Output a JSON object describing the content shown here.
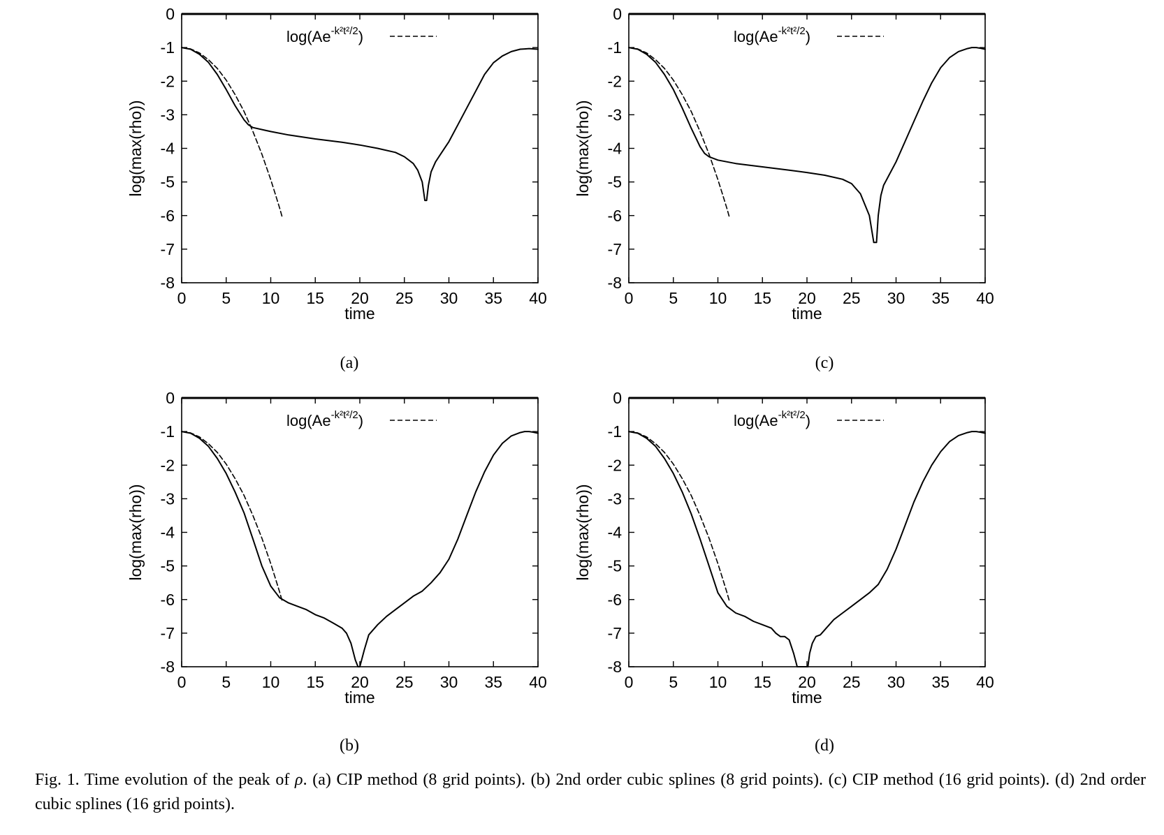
{
  "chart_data": [
    {
      "id": "a",
      "type": "line",
      "panel_label": "(a)",
      "xlabel": "time",
      "ylabel": "log(max(rho))",
      "xlim": [
        0,
        40
      ],
      "ylim": [
        -8,
        0
      ],
      "xticks": [
        "0",
        "5",
        "10",
        "15",
        "20",
        "25",
        "30",
        "35",
        "40"
      ],
      "yticks": [
        "0",
        "-1",
        "-2",
        "-3",
        "-4",
        "-5",
        "-6",
        "-7",
        "-8"
      ],
      "legend": {
        "prefix": "log(Ae",
        "sup": "-k²t²/2",
        "suffix": ")"
      },
      "series": [
        {
          "name": "log(max(rho))",
          "style": "solid",
          "x": [
            0,
            1,
            2,
            3,
            4,
            5,
            6,
            7,
            7.5,
            8,
            10,
            12,
            15,
            18,
            20,
            22,
            24,
            25,
            26,
            26.5,
            27,
            27.3,
            27.5,
            27.7,
            28,
            28.5,
            29,
            30,
            31,
            32,
            33,
            34,
            35,
            36,
            37,
            38,
            38.5,
            39,
            39.5,
            40
          ],
          "y": [
            -1,
            -1.05,
            -1.2,
            -1.44,
            -1.8,
            -2.25,
            -2.73,
            -3.15,
            -3.3,
            -3.38,
            -3.5,
            -3.6,
            -3.72,
            -3.82,
            -3.9,
            -4.0,
            -4.12,
            -4.25,
            -4.45,
            -4.65,
            -5.0,
            -5.55,
            -5.55,
            -5.1,
            -4.7,
            -4.4,
            -4.2,
            -3.8,
            -3.3,
            -2.8,
            -2.3,
            -1.8,
            -1.45,
            -1.25,
            -1.12,
            -1.05,
            -1.04,
            -1.03,
            -1.04,
            -1.05
          ]
        },
        {
          "name": "log(Ae^(-k²t²/2))",
          "style": "dashed",
          "x": [
            0,
            1,
            2,
            3,
            4,
            5,
            6,
            7,
            8,
            9,
            10,
            10.5,
            11,
            11.3
          ],
          "y": [
            -1,
            -1.04,
            -1.16,
            -1.36,
            -1.62,
            -1.97,
            -2.4,
            -2.9,
            -3.5,
            -4.17,
            -4.93,
            -5.35,
            -5.78,
            -6.06
          ]
        }
      ]
    },
    {
      "id": "c",
      "type": "line",
      "panel_label": "(c)",
      "xlabel": "time",
      "ylabel": "log(max(rho))",
      "xlim": [
        0,
        40
      ],
      "ylim": [
        -8,
        0
      ],
      "xticks": [
        "0",
        "5",
        "10",
        "15",
        "20",
        "25",
        "30",
        "35",
        "40"
      ],
      "yticks": [
        "0",
        "-1",
        "-2",
        "-3",
        "-4",
        "-5",
        "-6",
        "-7",
        "-8"
      ],
      "legend": {
        "prefix": "log(Ae",
        "sup": "-k²t²/2",
        "suffix": ")"
      },
      "series": [
        {
          "name": "log(max(rho))",
          "style": "solid",
          "x": [
            0,
            1,
            2,
            3,
            4,
            5,
            6,
            7,
            8,
            8.5,
            9,
            10,
            12,
            15,
            18,
            20,
            22,
            24,
            25,
            26,
            27,
            27.5,
            27.8,
            28,
            28.3,
            28.6,
            29,
            30,
            31,
            32,
            33,
            34,
            35,
            36,
            37,
            38,
            38.5,
            39,
            39.5,
            40
          ],
          "y": [
            -1,
            -1.05,
            -1.2,
            -1.44,
            -1.8,
            -2.25,
            -2.8,
            -3.4,
            -3.95,
            -4.15,
            -4.25,
            -4.35,
            -4.45,
            -4.55,
            -4.65,
            -4.72,
            -4.8,
            -4.92,
            -5.05,
            -5.35,
            -6.0,
            -6.8,
            -6.8,
            -6.0,
            -5.4,
            -5.1,
            -4.9,
            -4.4,
            -3.8,
            -3.2,
            -2.6,
            -2.05,
            -1.6,
            -1.3,
            -1.12,
            -1.03,
            -1.0,
            -1.0,
            -1.02,
            -1.05
          ]
        },
        {
          "name": "log(Ae^(-k²t²/2))",
          "style": "dashed",
          "x": [
            0,
            1,
            2,
            3,
            4,
            5,
            6,
            7,
            8,
            9,
            10,
            10.5,
            11,
            11.3
          ],
          "y": [
            -1,
            -1.04,
            -1.16,
            -1.36,
            -1.62,
            -1.97,
            -2.4,
            -2.9,
            -3.5,
            -4.17,
            -4.93,
            -5.35,
            -5.78,
            -6.06
          ]
        }
      ]
    },
    {
      "id": "b",
      "type": "line",
      "panel_label": "(b)",
      "xlabel": "time",
      "ylabel": "log(max(rho))",
      "xlim": [
        0,
        40
      ],
      "ylim": [
        -8,
        0
      ],
      "xticks": [
        "0",
        "5",
        "10",
        "15",
        "20",
        "25",
        "30",
        "35",
        "40"
      ],
      "yticks": [
        "0",
        "-1",
        "-2",
        "-3",
        "-4",
        "-5",
        "-6",
        "-7",
        "-8"
      ],
      "legend": {
        "prefix": "log(Ae",
        "sup": "-k²t²/2",
        "suffix": ")"
      },
      "series": [
        {
          "name": "log(max(rho))",
          "style": "solid",
          "x": [
            0,
            1,
            2,
            3,
            4,
            5,
            6,
            7,
            8,
            9,
            10,
            11,
            12,
            13,
            14,
            15,
            16,
            17,
            18,
            18.5,
            19,
            19.5,
            19.8,
            20,
            20.5,
            21,
            22,
            23,
            24,
            25,
            26,
            27,
            28,
            29,
            30,
            31,
            32,
            33,
            34,
            35,
            36,
            37,
            38,
            38.5,
            39,
            39.5,
            40
          ],
          "y": [
            -1,
            -1.05,
            -1.2,
            -1.44,
            -1.8,
            -2.25,
            -2.8,
            -3.42,
            -4.2,
            -5.0,
            -5.6,
            -5.95,
            -6.1,
            -6.2,
            -6.3,
            -6.45,
            -6.55,
            -6.7,
            -6.85,
            -7.0,
            -7.3,
            -7.8,
            -8.0,
            -8.0,
            -7.5,
            -7.05,
            -6.75,
            -6.5,
            -6.3,
            -6.1,
            -5.9,
            -5.75,
            -5.5,
            -5.2,
            -4.8,
            -4.2,
            -3.5,
            -2.8,
            -2.2,
            -1.7,
            -1.35,
            -1.13,
            -1.03,
            -1.0,
            -1.0,
            -1.02,
            -1.05
          ]
        },
        {
          "name": "log(Ae^(-k²t²/2))",
          "style": "dashed",
          "x": [
            0,
            1,
            2,
            3,
            4,
            5,
            6,
            7,
            8,
            9,
            10,
            10.5,
            11,
            11.3
          ],
          "y": [
            -1,
            -1.04,
            -1.16,
            -1.36,
            -1.62,
            -1.97,
            -2.4,
            -2.9,
            -3.5,
            -4.17,
            -4.93,
            -5.35,
            -5.78,
            -6.06
          ]
        }
      ]
    },
    {
      "id": "d",
      "type": "line",
      "panel_label": "(d)",
      "xlabel": "time",
      "ylabel": "log(max(rho))",
      "xlim": [
        0,
        40
      ],
      "ylim": [
        -8,
        0
      ],
      "xticks": [
        "0",
        "5",
        "10",
        "15",
        "20",
        "25",
        "30",
        "35",
        "40"
      ],
      "yticks": [
        "0",
        "-1",
        "-2",
        "-3",
        "-4",
        "-5",
        "-6",
        "-7",
        "-8"
      ],
      "legend": {
        "prefix": "log(Ae",
        "sup": "-k²t²/2",
        "suffix": ")"
      },
      "series": [
        {
          "name": "log(max(rho))",
          "style": "solid",
          "x": [
            0,
            1,
            2,
            3,
            4,
            5,
            6,
            7,
            8,
            9,
            10,
            11,
            12,
            13,
            14,
            15,
            16,
            16.5,
            17,
            17.5,
            18,
            18.5,
            18.9,
            19.1,
            19.6,
            20.1,
            20.3,
            20.6,
            21,
            21.5,
            22,
            23,
            24,
            25,
            26,
            27,
            28,
            29,
            30,
            31,
            32,
            33,
            34,
            35,
            36,
            37,
            38,
            38.5,
            39,
            39.5,
            40
          ],
          "y": [
            -1,
            -1.05,
            -1.2,
            -1.44,
            -1.8,
            -2.25,
            -2.8,
            -3.45,
            -4.2,
            -5.0,
            -5.8,
            -6.2,
            -6.4,
            -6.5,
            -6.65,
            -6.75,
            -6.85,
            -7.0,
            -7.1,
            -7.1,
            -7.2,
            -7.6,
            -8.0,
            -8.0,
            -8.0,
            -8.0,
            -7.6,
            -7.3,
            -7.1,
            -7.05,
            -6.9,
            -6.6,
            -6.4,
            -6.2,
            -6.0,
            -5.8,
            -5.55,
            -5.1,
            -4.5,
            -3.8,
            -3.1,
            -2.5,
            -2.0,
            -1.6,
            -1.3,
            -1.12,
            -1.03,
            -1.0,
            -1.0,
            -1.02,
            -1.05
          ]
        },
        {
          "name": "log(Ae^(-k²t²/2))",
          "style": "dashed",
          "x": [
            0,
            1,
            2,
            3,
            4,
            5,
            6,
            7,
            8,
            9,
            10,
            10.5,
            11,
            11.3
          ],
          "y": [
            -1,
            -1.04,
            -1.16,
            -1.36,
            -1.62,
            -1.97,
            -2.4,
            -2.9,
            -3.5,
            -4.17,
            -4.93,
            -5.35,
            -5.78,
            -6.06
          ]
        }
      ]
    }
  ],
  "caption": {
    "lead": "Fig. 1. Time evolution of the peak of",
    "symbol": "ρ",
    "rest": ". (a) CIP method (8 grid points). (b) 2nd order cubic splines (8 grid points). (c) CIP method (16 grid points). (d) 2nd order cubic splines (16 grid points)."
  }
}
